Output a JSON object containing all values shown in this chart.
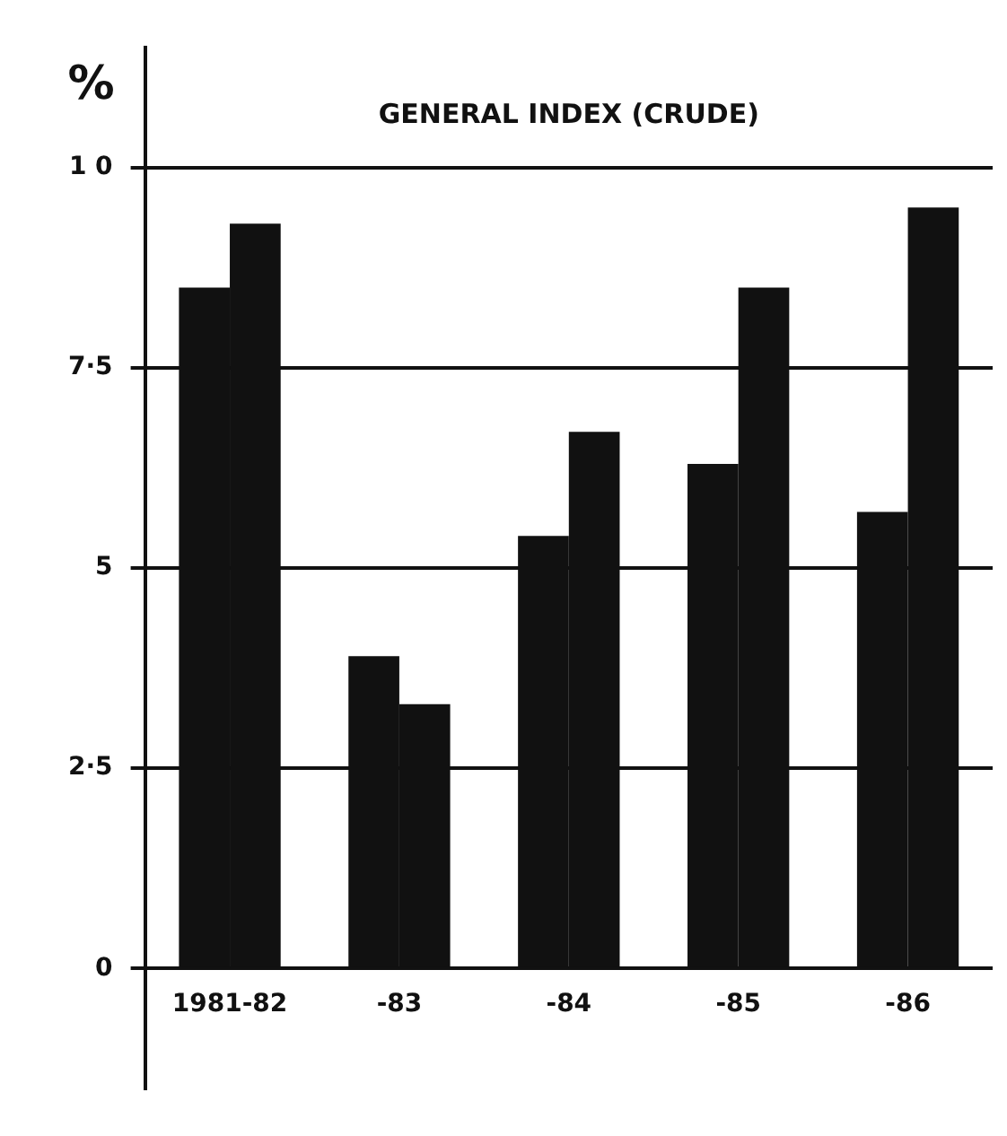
{
  "chart_data": {
    "type": "bar",
    "title": "GENERAL INDEX (CRUDE)",
    "ylabel": "%",
    "categories": [
      "1981-82",
      "-83",
      "-84",
      "-85",
      "-86"
    ],
    "series": [
      {
        "color": "#111111",
        "values": [
          8.5,
          3.9,
          5.4,
          6.3,
          5.7
        ]
      },
      {
        "color": "#111111",
        "values": [
          9.3,
          3.3,
          6.7,
          8.5,
          9.5
        ]
      }
    ],
    "ylim": [
      -1.5,
      11.5
    ],
    "yticks": [
      0,
      {
        "value": 2.5,
        "label": "2·5"
      },
      5,
      {
        "value": 7.5,
        "label": "7·5"
      },
      {
        "value": 10,
        "label": "1 0"
      }
    ],
    "grid": "y",
    "legend": false
  }
}
